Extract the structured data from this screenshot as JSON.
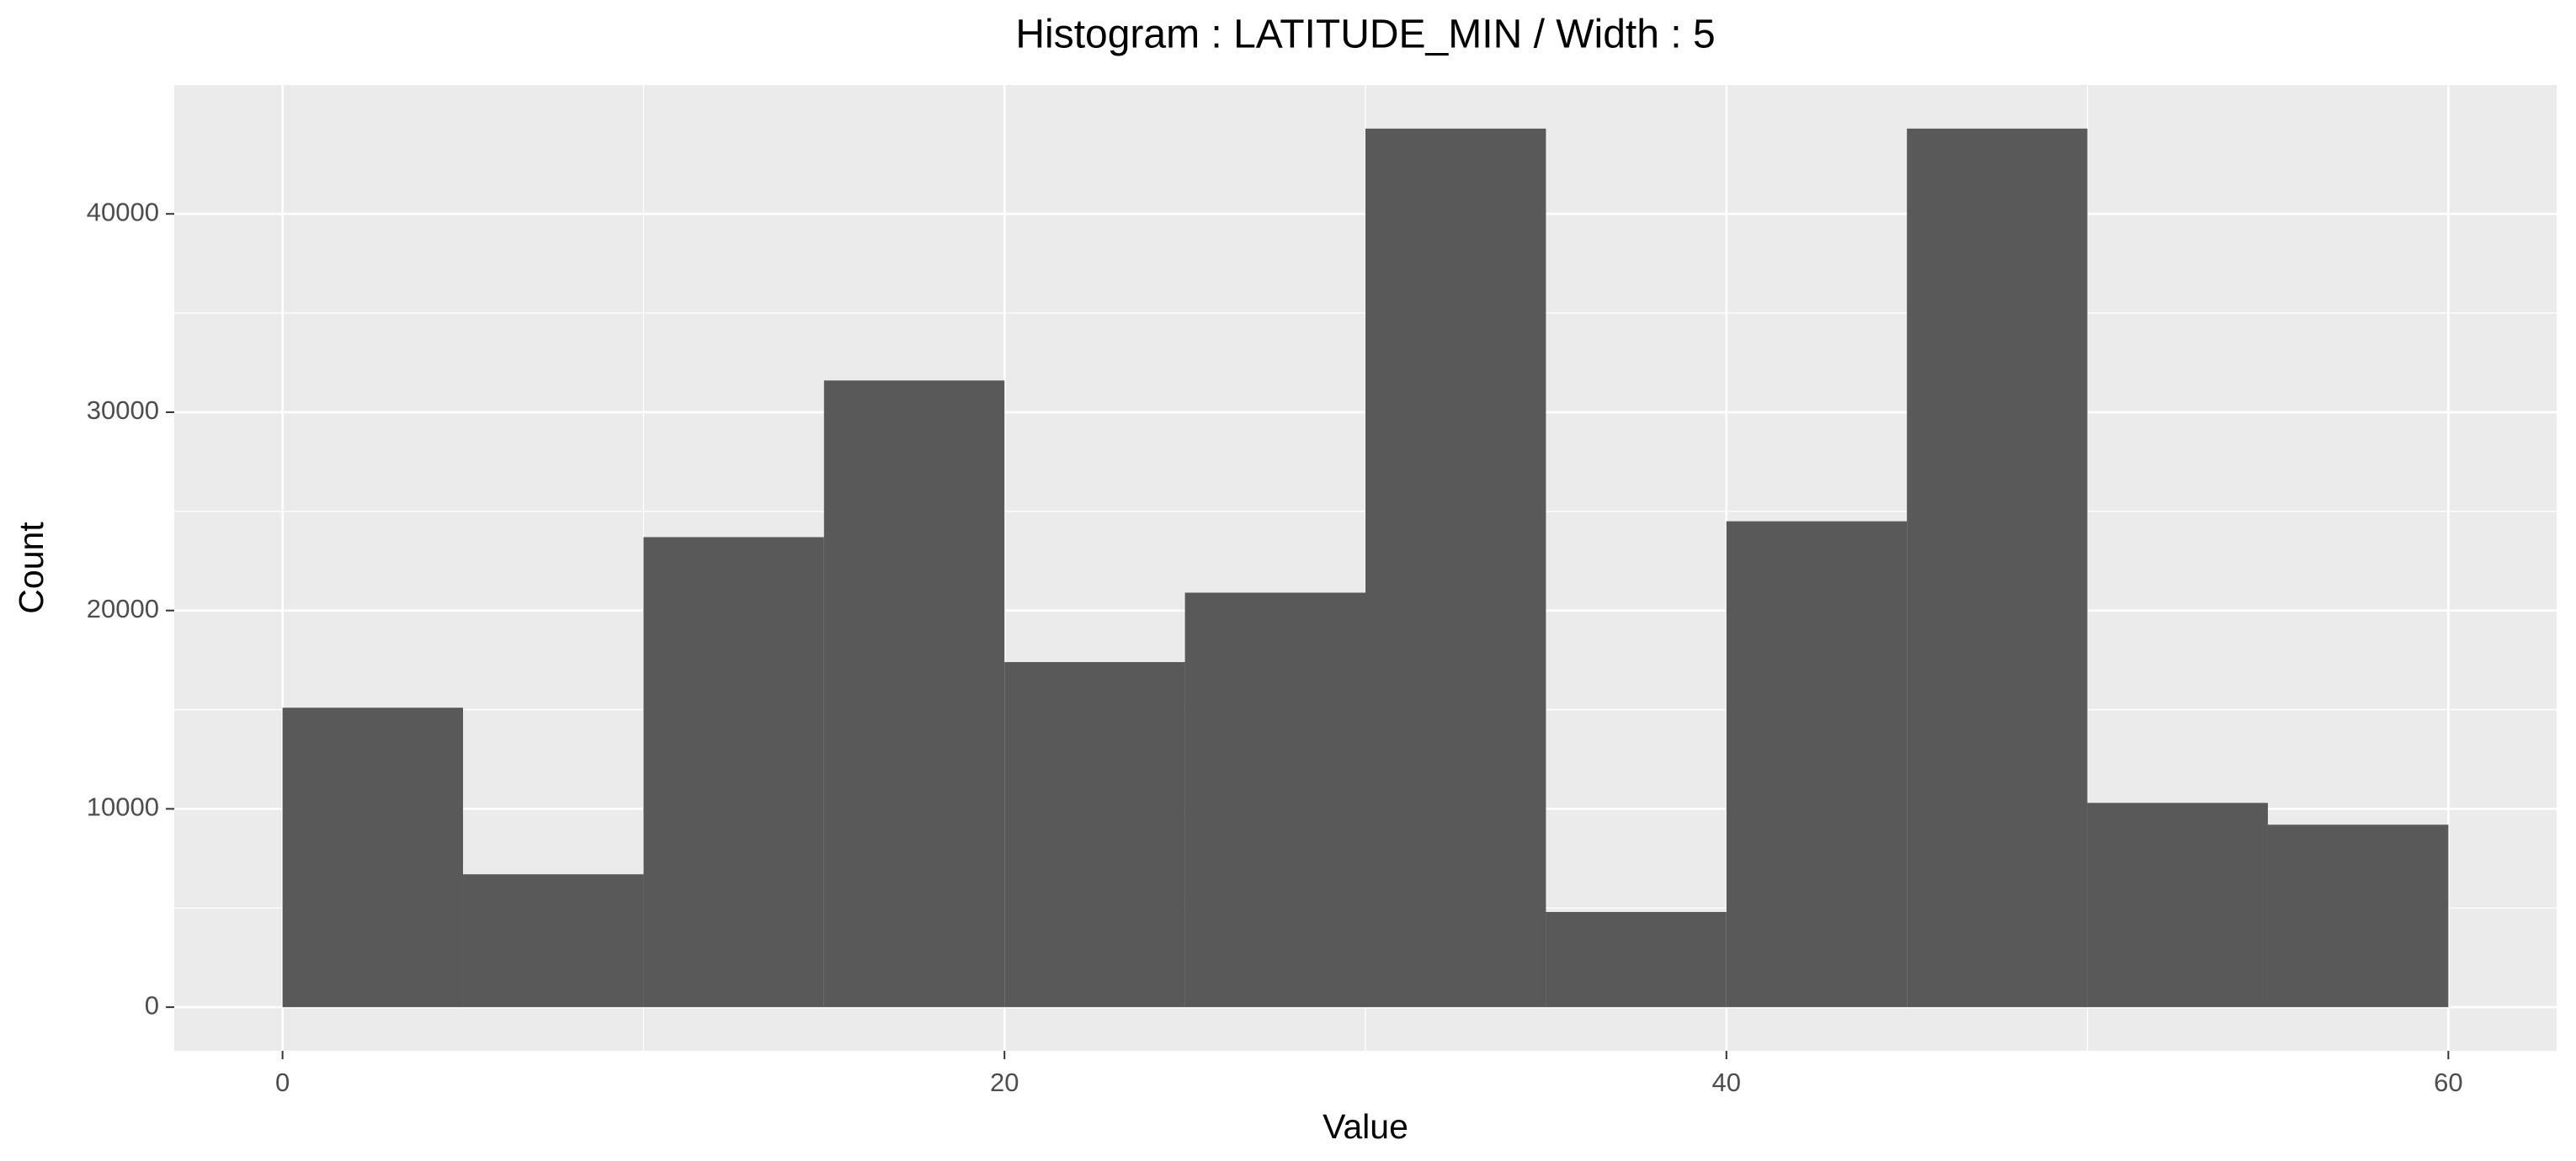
{
  "chart_data": {
    "type": "histogram",
    "title": "Histogram : LATITUDE_MIN / Width : 5",
    "x_label": "Value",
    "y_label": "Count",
    "bins": [
      0,
      5,
      10,
      15,
      20,
      25,
      30,
      35,
      40,
      45,
      50,
      55,
      60
    ],
    "counts": [
      15100,
      6700,
      23700,
      31600,
      17400,
      20900,
      44300,
      4800,
      24500,
      44300,
      10300,
      9200
    ],
    "color": "#595959",
    "xlim": [
      -3,
      63
    ],
    "xticks": [
      0,
      20,
      40,
      60
    ],
    "ylim": [
      -2200,
      46500
    ],
    "yticks": [
      0,
      10000,
      20000,
      30000,
      40000
    ],
    "grid": true
  }
}
